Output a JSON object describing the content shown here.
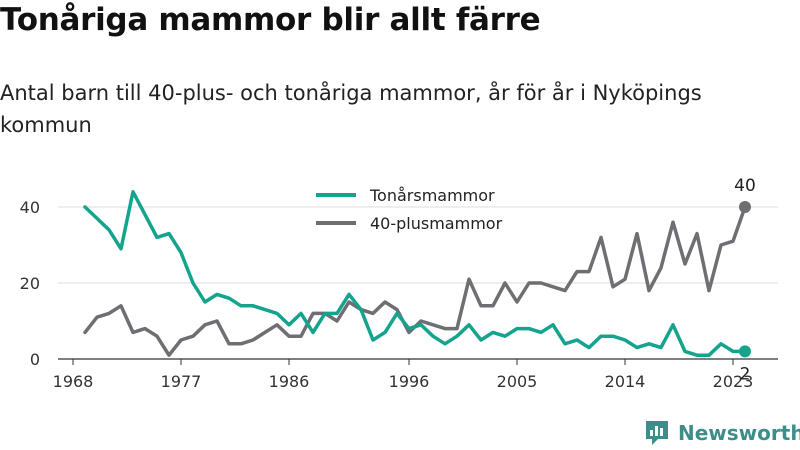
{
  "title": "Tonåriga mammor blir allt färre",
  "subtitle": "Antal barn till 40-plus- och tonåriga mammor, år för år i Nyköpings kommun",
  "brand": {
    "name": "Newsworthy",
    "icon": "newsworthy-logo-icon"
  },
  "colors": {
    "teal": "#14a38d",
    "gray": "#6e6e73",
    "grid": "#dddddd",
    "brand": "#3d8e8a"
  },
  "chart_data": {
    "type": "line",
    "x_ticks": [
      "1968",
      "1977",
      "1986",
      "1996",
      "2005",
      "2014",
      "2023"
    ],
    "y_ticks": [
      "0",
      "20",
      "40"
    ],
    "xlim": [
      1968,
      2024
    ],
    "ylim": [
      0,
      40
    ],
    "grid": true,
    "legend_position": "top-center",
    "x": [
      1969,
      1970,
      1971,
      1972,
      1973,
      1974,
      1975,
      1976,
      1977,
      1978,
      1979,
      1980,
      1981,
      1982,
      1983,
      1984,
      1985,
      1986,
      1987,
      1988,
      1989,
      1990,
      1991,
      1992,
      1993,
      1994,
      1995,
      1996,
      1997,
      1998,
      1999,
      2000,
      2001,
      2002,
      2003,
      2004,
      2005,
      2006,
      2007,
      2008,
      2009,
      2010,
      2011,
      2012,
      2013,
      2014,
      2015,
      2016,
      2017,
      2018,
      2019,
      2020,
      2021,
      2022,
      2023,
      2024
    ],
    "series": [
      {
        "name": "Tonårsmammor",
        "color": "#14a38d",
        "values": [
          40,
          37,
          34,
          29,
          44,
          38,
          32,
          33,
          28,
          20,
          15,
          17,
          16,
          14,
          14,
          13,
          12,
          9,
          12,
          7,
          12,
          12,
          17,
          13,
          5,
          7,
          12,
          8,
          9,
          6,
          4,
          6,
          9,
          5,
          7,
          6,
          8,
          8,
          7,
          9,
          4,
          5,
          3,
          6,
          6,
          5,
          3,
          4,
          3,
          9,
          2,
          1,
          1,
          4,
          2,
          2
        ]
      },
      {
        "name": "40-plusmammor",
        "color": "#6e6e73",
        "values": [
          7,
          11,
          12,
          14,
          7,
          8,
          6,
          1,
          5,
          6,
          9,
          10,
          4,
          4,
          5,
          7,
          9,
          6,
          6,
          12,
          12,
          10,
          15,
          13,
          12,
          15,
          13,
          7,
          10,
          9,
          8,
          8,
          21,
          14,
          14,
          20,
          15,
          20,
          20,
          19,
          18,
          23,
          23,
          32,
          19,
          21,
          33,
          18,
          24,
          36,
          25,
          33,
          18,
          30,
          31,
          40
        ]
      }
    ],
    "end_labels": [
      "40",
      "2"
    ]
  }
}
